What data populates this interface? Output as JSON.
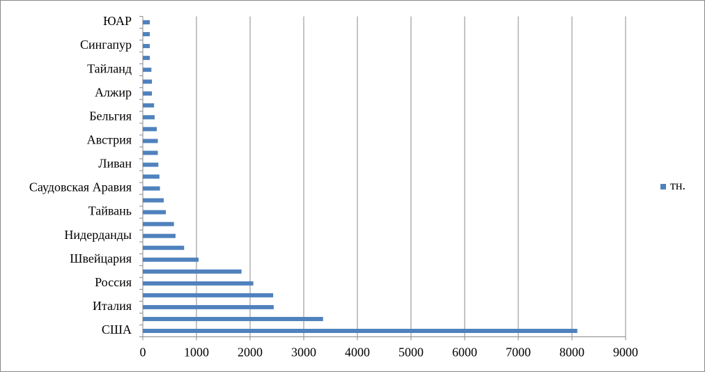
{
  "chart_data": {
    "type": "barh",
    "categories": [
      "США",
      null,
      "Италия",
      null,
      "Россия",
      null,
      "Швейцария",
      null,
      "Нидерданды",
      null,
      "Тайвань",
      null,
      "Саудовская Аравия",
      null,
      "Ливан",
      null,
      "Австрия",
      null,
      "Бельгия",
      null,
      "Алжир",
      null,
      "Тайланд",
      null,
      "Сингапур",
      null,
      "ЮАР"
    ],
    "series": [
      {
        "name": "тн.",
        "color": "#4f81bd",
        "values": [
          8100,
          3360,
          2440,
          2430,
          2060,
          1840,
          1040,
          770,
          610,
          580,
          430,
          390,
          320,
          310,
          290,
          280,
          280,
          260,
          220,
          210,
          170,
          170,
          160,
          130,
          130,
          130,
          130
        ]
      }
    ],
    "xlim": [
      0,
      9000
    ],
    "xticks": [
      0,
      1000,
      2000,
      3000,
      4000,
      5000,
      6000,
      7000,
      8000,
      9000
    ],
    "grid": true,
    "legend": "right"
  }
}
